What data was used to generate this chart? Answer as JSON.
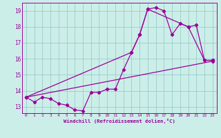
{
  "xlabel": "Windchill (Refroidissement éolien,°C)",
  "bg_color": "#cceee8",
  "grid_color": "#99cccc",
  "line_color": "#990099",
  "xlim": [
    -0.5,
    23.5
  ],
  "ylim": [
    12.6,
    19.5
  ],
  "yticks": [
    13,
    14,
    15,
    16,
    17,
    18,
    19
  ],
  "xticks": [
    0,
    1,
    2,
    3,
    4,
    5,
    6,
    7,
    8,
    9,
    10,
    11,
    12,
    13,
    14,
    15,
    16,
    17,
    18,
    19,
    20,
    21,
    22,
    23
  ],
  "series1_x": [
    0,
    1,
    2,
    3,
    4,
    5,
    6,
    7,
    8,
    9,
    10,
    11,
    12,
    13,
    14,
    15,
    16,
    17,
    18,
    19,
    20,
    21,
    22,
    23
  ],
  "series1_y": [
    13.6,
    13.3,
    13.6,
    13.5,
    13.2,
    13.1,
    12.8,
    12.75,
    13.9,
    13.9,
    14.1,
    14.1,
    15.3,
    16.4,
    17.5,
    19.1,
    19.2,
    19.0,
    17.5,
    18.2,
    18.0,
    18.1,
    15.9,
    15.9
  ],
  "series2_x": [
    0,
    13,
    14,
    15,
    20,
    22,
    23
  ],
  "series2_y": [
    13.6,
    16.4,
    17.5,
    19.1,
    18.0,
    15.9,
    15.9
  ],
  "series3_x": [
    0,
    23
  ],
  "series3_y": [
    13.6,
    15.85
  ],
  "marker": "D",
  "markersize": 2.2,
  "linewidth": 0.9
}
